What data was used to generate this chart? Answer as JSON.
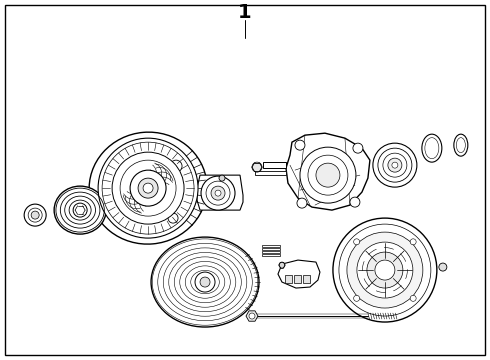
{
  "title": "1",
  "background_color": "#ffffff",
  "line_color": "#000000",
  "line_width": 0.8,
  "figure_width": 4.9,
  "figure_height": 3.6,
  "dpi": 100,
  "border_lw": 1.0,
  "title_fontsize": 14
}
